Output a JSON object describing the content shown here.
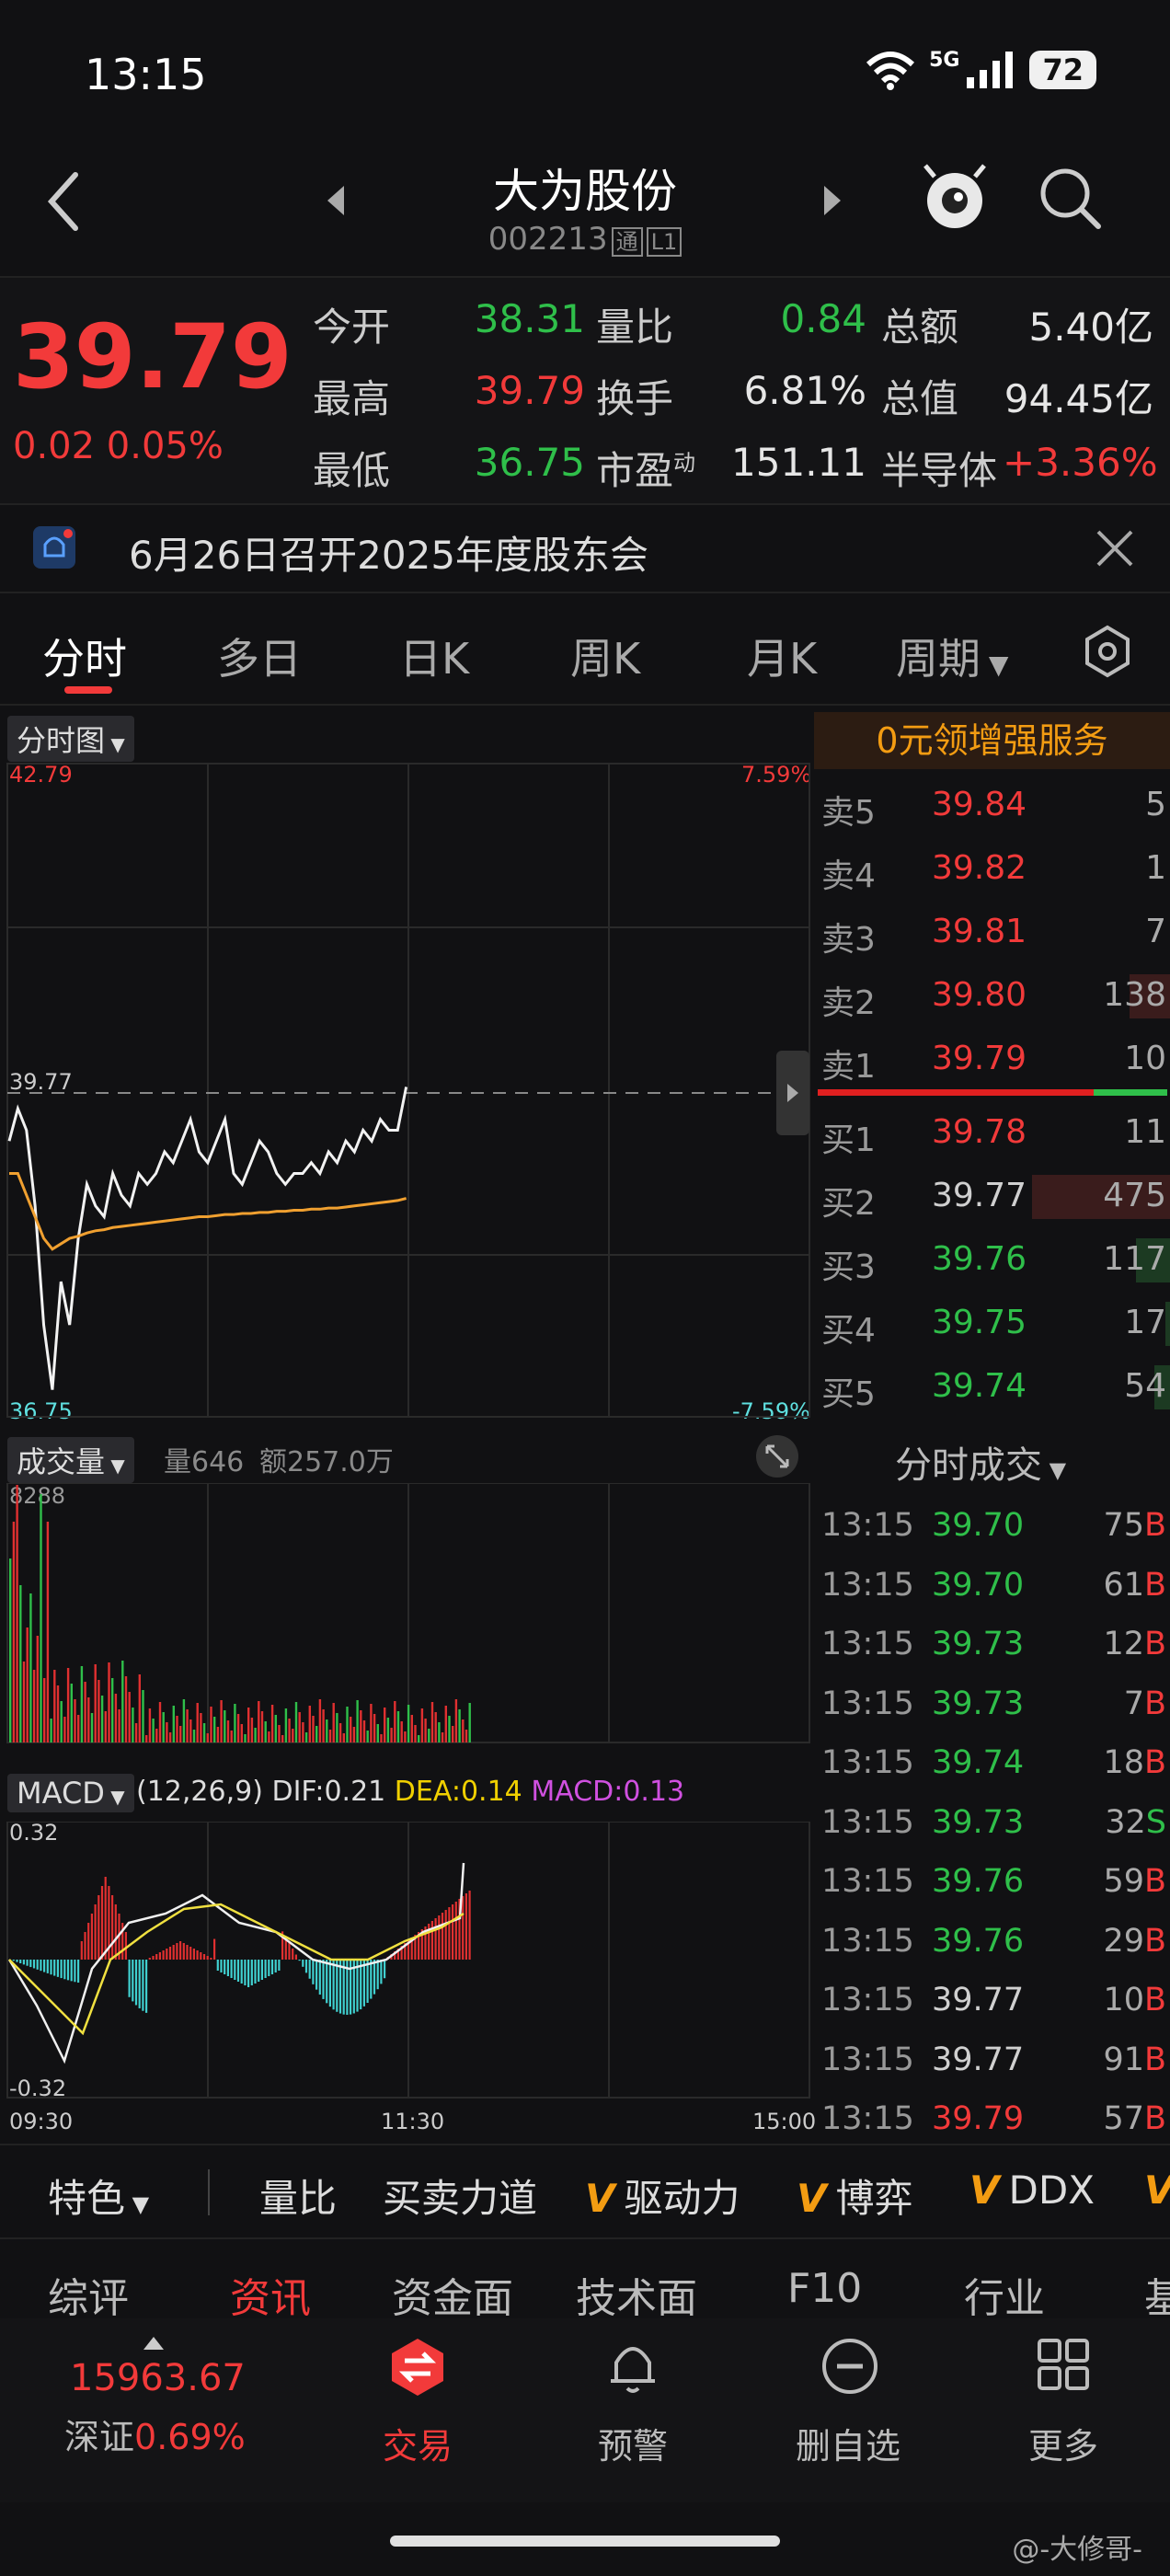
{
  "status_bar": {
    "time": "13:15",
    "network": "5G",
    "battery": "72"
  },
  "header": {
    "title": "大为股份",
    "code": "002213",
    "tag_tong": "通",
    "tag_level": "L1"
  },
  "quote": {
    "price": "39.79",
    "change": "0.02",
    "change_pct": "0.05%",
    "open_label": "今开",
    "open": "38.31",
    "high_label": "最高",
    "high": "39.79",
    "low_label": "最低",
    "low": "36.75",
    "vol_ratio_label": "量比",
    "vol_ratio": "0.84",
    "turnover_label": "换手",
    "turnover": "6.81%",
    "pe_label": "市盈",
    "pe_sup": "动",
    "pe": "151.11",
    "amount_label": "总额",
    "amount": "5.40亿",
    "mktcap_label": "总值",
    "mktcap": "94.45亿",
    "sector": "半导体",
    "sector_pct": "+3.36%"
  },
  "notice": {
    "text": "6月26日召开2025年度股东会"
  },
  "tabs": [
    "分时",
    "多日",
    "日K",
    "周K",
    "月K",
    "周期"
  ],
  "chart": {
    "mode_label": "分时图",
    "top_price": "42.79",
    "top_pct": "7.59%",
    "bottom_price": "36.75",
    "bottom_pct": "-7.59%",
    "ref_price": "39.77",
    "volume_label": "成交量",
    "volume_info": "量646",
    "amount_info": "额257.0万",
    "volume_max": "8288",
    "macd_label": "MACD",
    "macd_params": "(12,26,9)",
    "dif": "DIF:0.21",
    "dea": "DEA:0.14",
    "macd": "MACD:0.13",
    "macd_top": "0.32",
    "macd_bottom": "-0.32",
    "time_start": "09:30",
    "time_mid": "11:30",
    "time_end": "15:00"
  },
  "chart_data": {
    "type": "line",
    "x_range": [
      "09:30",
      "15:00"
    ],
    "ylim": [
      36.75,
      42.79
    ],
    "series": [
      {
        "values": [
          39.3,
          39.6,
          39.4,
          38.7,
          37.6,
          37.0,
          38.0,
          37.6,
          38.4,
          38.9,
          38.7,
          38.6,
          39.0,
          38.8,
          38.7,
          39.0,
          38.9,
          39.0,
          39.2,
          39.1,
          39.3,
          39.5,
          39.2,
          39.1,
          39.3,
          39.5,
          39.0,
          38.9,
          39.1,
          39.3,
          39.2,
          39.0,
          38.9,
          39.0,
          39.0,
          39.1,
          39.0,
          39.2,
          39.1,
          39.3,
          39.2,
          39.4,
          39.3,
          39.5,
          39.4,
          39.4,
          39.8
        ]
      },
      {
        "values": [
          39.0,
          39.0,
          38.8,
          38.6,
          38.4,
          38.3,
          38.35,
          38.4,
          38.42,
          38.45,
          38.47,
          38.48,
          38.5,
          38.51,
          38.52,
          38.53,
          38.54,
          38.55,
          38.56,
          38.57,
          38.58,
          38.59,
          38.6,
          38.6,
          38.61,
          38.62,
          38.62,
          38.63,
          38.63,
          38.64,
          38.64,
          38.65,
          38.65,
          38.66,
          38.66,
          38.67,
          38.67,
          38.68,
          38.68,
          38.69,
          38.7,
          38.71,
          38.72,
          38.73,
          38.74,
          38.75,
          38.77
        ]
      }
    ]
  },
  "book": {
    "promo": "0元领增强服务",
    "asks": [
      {
        "label": "卖5",
        "price": "39.84",
        "vol": "5",
        "color": "red"
      },
      {
        "label": "卖4",
        "price": "39.82",
        "vol": "1",
        "color": "red"
      },
      {
        "label": "卖3",
        "price": "39.81",
        "vol": "7",
        "color": "red"
      },
      {
        "label": "卖2",
        "price": "39.80",
        "vol": "138",
        "color": "red"
      },
      {
        "label": "卖1",
        "price": "39.79",
        "vol": "10",
        "color": "red"
      }
    ],
    "bids": [
      {
        "label": "买1",
        "price": "39.78",
        "vol": "11",
        "color": "red"
      },
      {
        "label": "买2",
        "price": "39.77",
        "vol": "475",
        "color": "white"
      },
      {
        "label": "买3",
        "price": "39.76",
        "vol": "117",
        "color": "green"
      },
      {
        "label": "买4",
        "price": "39.75",
        "vol": "17",
        "color": "green"
      },
      {
        "label": "买5",
        "price": "39.74",
        "vol": "54",
        "color": "green"
      }
    ],
    "ticks_title": "分时成交",
    "ticks": [
      {
        "time": "13:15",
        "price": "39.70",
        "vol": "75B",
        "color": "green",
        "side": "red"
      },
      {
        "time": "13:15",
        "price": "39.70",
        "vol": "61B",
        "color": "green",
        "side": "red"
      },
      {
        "time": "13:15",
        "price": "39.73",
        "vol": "12B",
        "color": "green",
        "side": "red"
      },
      {
        "time": "13:15",
        "price": "39.73",
        "vol": "7B",
        "color": "green",
        "side": "red"
      },
      {
        "time": "13:15",
        "price": "39.74",
        "vol": "18B",
        "color": "green",
        "side": "red"
      },
      {
        "time": "13:15",
        "price": "39.73",
        "vol": "32S",
        "color": "green",
        "side": "green"
      },
      {
        "time": "13:15",
        "price": "39.76",
        "vol": "59B",
        "color": "green",
        "side": "red"
      },
      {
        "time": "13:15",
        "price": "39.76",
        "vol": "29B",
        "color": "green",
        "side": "red"
      },
      {
        "time": "13:15",
        "price": "39.77",
        "vol": "10B",
        "color": "white",
        "side": "red"
      },
      {
        "time": "13:15",
        "price": "39.77",
        "vol": "91B",
        "color": "white",
        "side": "red"
      },
      {
        "time": "13:15",
        "price": "39.79",
        "vol": "57B",
        "color": "red",
        "side": "red"
      }
    ]
  },
  "indicators": {
    "feature": "特色",
    "items": [
      "量比",
      "买卖力道",
      "驱动力",
      "博弈",
      "DDX"
    ]
  },
  "lower_tabs": [
    "综评",
    "资讯",
    "资金面",
    "技术面",
    "F10",
    "行业",
    "基"
  ],
  "index": {
    "value": "15963.67",
    "name": "深证",
    "pct": "0.69%"
  },
  "nav": [
    "交易",
    "预警",
    "删自选",
    "更多"
  ],
  "watermark": "@-大修哥-"
}
